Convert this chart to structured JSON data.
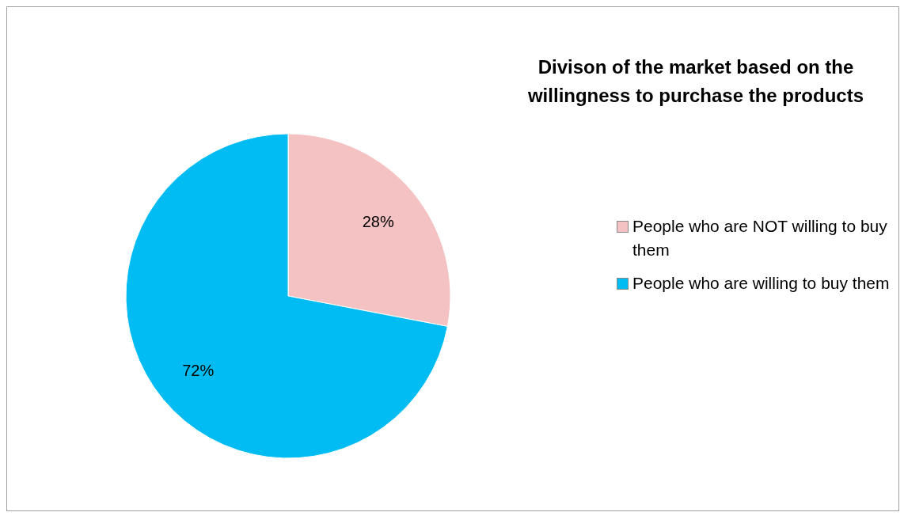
{
  "chart_data": {
    "type": "pie",
    "title": "Divison of the market based on the willingness to purchase the products",
    "categories": [
      "People who are NOT willing to buy them",
      "People who are willing to buy them"
    ],
    "values": [
      28,
      72
    ],
    "colors": [
      "#f4c2c2",
      "#00bcf2"
    ],
    "value_labels": [
      "28%",
      "72%"
    ],
    "legend": "right"
  }
}
